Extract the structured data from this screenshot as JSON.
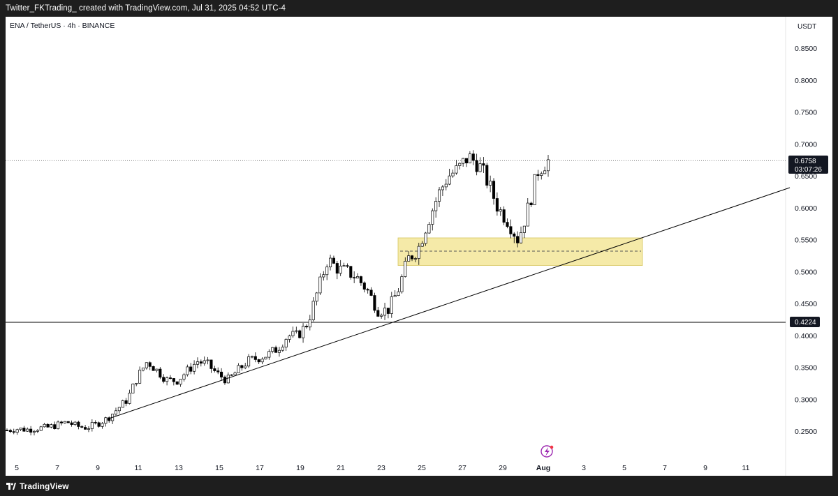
{
  "header": {
    "text": "Twitter_FKTrading_ created with TradingView.com, Jul 31, 2025 04:52 UTC-4"
  },
  "chart": {
    "symbol": "ENA / TetherUS · 4h · BINANCE",
    "currency": "USDT",
    "price_ticks": [
      "0.8500",
      "0.8000",
      "0.7500",
      "0.7000",
      "0.6500",
      "0.6000",
      "0.5500",
      "0.5000",
      "0.4500",
      "0.4000",
      "0.3500",
      "0.3000",
      "0.2500"
    ],
    "date_ticks": [
      "5",
      "7",
      "9",
      "11",
      "13",
      "15",
      "17",
      "19",
      "21",
      "23",
      "25",
      "27",
      "29",
      "Aug",
      "3",
      "5",
      "7",
      "9",
      "11"
    ],
    "current_price": "0.6758",
    "countdown": "03:07:26",
    "support_label": "0.4224",
    "colors": {
      "up_candle": "#ffffff",
      "down_candle": "#000000",
      "zone": "#f5eaa8",
      "line": "#000000"
    }
  },
  "footer": {
    "brand": "TradingView"
  },
  "chart_data": {
    "type": "candlestick",
    "title": "ENA / TetherUS · 4h · BINANCE",
    "ylabel": "USDT",
    "ylim": [
      0.22,
      0.88
    ],
    "x_range": [
      "Jul 5",
      "Aug 12"
    ],
    "x_ticks": [
      "5",
      "7",
      "9",
      "11",
      "13",
      "15",
      "17",
      "19",
      "21",
      "23",
      "25",
      "27",
      "29",
      "Aug",
      "3",
      "5",
      "7",
      "9",
      "11"
    ],
    "close_series": [
      0.252,
      0.254,
      0.253,
      0.255,
      0.256,
      0.26,
      0.265,
      0.258,
      0.256,
      0.262,
      0.27,
      0.285,
      0.3,
      0.335,
      0.36,
      0.345,
      0.33,
      0.33,
      0.345,
      0.36,
      0.355,
      0.34,
      0.33,
      0.345,
      0.36,
      0.365,
      0.37,
      0.38,
      0.4,
      0.4,
      0.42,
      0.47,
      0.52,
      0.505,
      0.5,
      0.49,
      0.47,
      0.44,
      0.44,
      0.47,
      0.52,
      0.535,
      0.58,
      0.62,
      0.65,
      0.66,
      0.68,
      0.67,
      0.64,
      0.6,
      0.58,
      0.55,
      0.6,
      0.66,
      0.6758
    ],
    "annotations": {
      "current_price": 0.6758,
      "support_level": 0.4224,
      "demand_zone": [
        0.512,
        0.556
      ],
      "zone_midline": 0.532,
      "trendline": [
        {
          "date": "Jul 9",
          "price": 0.265
        },
        {
          "date": "Aug 9",
          "price": 0.633
        }
      ]
    }
  }
}
